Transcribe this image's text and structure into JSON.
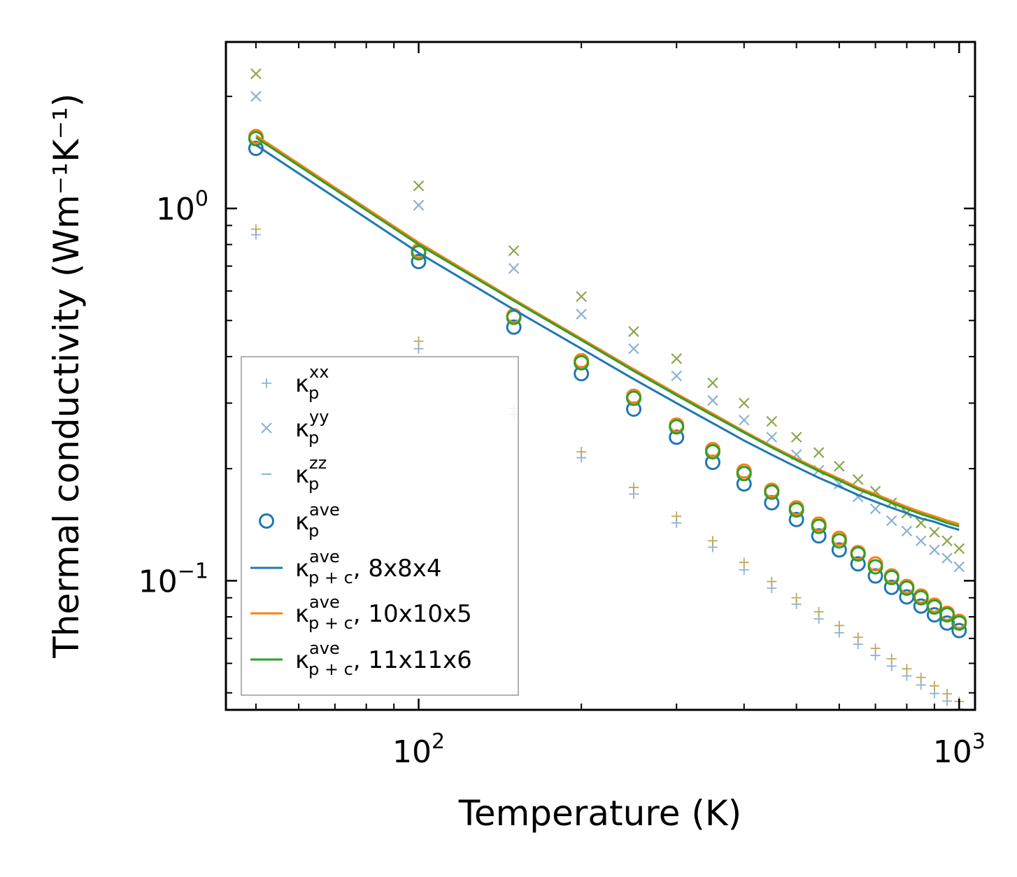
{
  "chart_data": {
    "type": "scatter",
    "xscale": "log",
    "yscale": "log",
    "xlabel": "Temperature (K)",
    "ylabel": "Thermal conductivity (Wm⁻¹K⁻¹)",
    "xlim": [
      44,
      1070
    ],
    "ylim": [
      0.045,
      2.8
    ],
    "xticks": [
      {
        "value": 100,
        "base": "10",
        "exp": "2"
      },
      {
        "value": 1000,
        "base": "10",
        "exp": "3"
      }
    ],
    "yticks": [
      {
        "value": 0.1,
        "base": "10",
        "exp": "−1"
      },
      {
        "value": 1.0,
        "base": "10",
        "exp": "0"
      }
    ],
    "colors": {
      "blue": "#1f77b4",
      "orange": "#ff7f0e",
      "green": "#2ca02c",
      "olive": "#7f9d3a",
      "light_blue": "#7faacf",
      "light_olive": "#b5a24a"
    },
    "x": [
      50,
      100,
      150,
      200,
      250,
      300,
      350,
      400,
      450,
      500,
      550,
      600,
      650,
      700,
      750,
      800,
      850,
      900,
      950,
      1000
    ],
    "series": [
      {
        "name": "kxx_8x8x4",
        "kind": "plus",
        "color": "light_blue",
        "values": [
          0.85,
          0.42,
          0.28,
          0.214,
          0.171,
          0.143,
          0.123,
          0.107,
          0.0955,
          0.0865,
          0.079,
          0.0725,
          0.0675,
          0.063,
          0.059,
          0.0555,
          0.0525,
          0.0498,
          0.0475,
          0.0452
        ]
      },
      {
        "name": "kxx_11x11x6",
        "kind": "plus",
        "color": "light_olive",
        "values": [
          0.88,
          0.44,
          0.29,
          0.222,
          0.178,
          0.149,
          0.128,
          0.112,
          0.0995,
          0.09,
          0.0825,
          0.0758,
          0.0705,
          0.0658,
          0.0617,
          0.058,
          0.055,
          0.0522,
          0.0497,
          0.0474
        ]
      },
      {
        "name": "kyy_8x8x4",
        "kind": "cross",
        "color": "light_blue",
        "values": [
          2.0,
          1.02,
          0.69,
          0.52,
          0.42,
          0.355,
          0.305,
          0.27,
          0.243,
          0.218,
          0.198,
          0.182,
          0.168,
          0.156,
          0.145,
          0.136,
          0.128,
          0.121,
          0.115,
          0.109
        ]
      },
      {
        "name": "kyy_11x11x6",
        "kind": "cross",
        "color": "olive",
        "values": [
          2.3,
          1.15,
          0.77,
          0.58,
          0.467,
          0.395,
          0.34,
          0.3,
          0.268,
          0.243,
          0.221,
          0.203,
          0.187,
          0.174,
          0.162,
          0.152,
          0.143,
          0.135,
          0.128,
          0.122
        ]
      },
      {
        "name": "kave_8x8x4",
        "kind": "circle",
        "color": "blue",
        "values": [
          1.45,
          0.72,
          0.48,
          0.36,
          0.289,
          0.243,
          0.208,
          0.182,
          0.162,
          0.146,
          0.132,
          0.121,
          0.111,
          0.103,
          0.096,
          0.0905,
          0.0855,
          0.081,
          0.077,
          0.0735
        ]
      },
      {
        "name": "kave_10x10x5",
        "kind": "circle",
        "color": "orange",
        "values": [
          1.56,
          0.77,
          0.515,
          0.39,
          0.313,
          0.262,
          0.225,
          0.197,
          0.175,
          0.157,
          0.142,
          0.13,
          0.119,
          0.111,
          0.103,
          0.0965,
          0.091,
          0.086,
          0.0818,
          0.0778
        ]
      },
      {
        "name": "kave_11x11x6",
        "kind": "circle",
        "color": "green",
        "values": [
          1.54,
          0.76,
          0.51,
          0.385,
          0.309,
          0.259,
          0.222,
          0.194,
          0.173,
          0.155,
          0.14,
          0.128,
          0.118,
          0.109,
          0.102,
          0.0955,
          0.09,
          0.085,
          0.081,
          0.077
        ]
      },
      {
        "name": "kpc_8x8x4",
        "kind": "line",
        "color": "blue",
        "values": [
          1.48,
          0.76,
          0.535,
          0.42,
          0.348,
          0.3,
          0.265,
          0.238,
          0.218,
          0.202,
          0.189,
          0.179,
          0.17,
          0.163,
          0.157,
          0.152,
          0.147,
          0.144,
          0.14,
          0.137
        ]
      },
      {
        "name": "kpc_10x10x5",
        "kind": "line",
        "color": "orange",
        "values": [
          1.57,
          0.81,
          0.57,
          0.447,
          0.37,
          0.318,
          0.281,
          0.252,
          0.23,
          0.213,
          0.199,
          0.188,
          0.178,
          0.171,
          0.164,
          0.158,
          0.153,
          0.149,
          0.145,
          0.142
        ]
      },
      {
        "name": "kpc_11x11x6",
        "kind": "line",
        "color": "green",
        "values": [
          1.55,
          0.8,
          0.565,
          0.443,
          0.366,
          0.315,
          0.278,
          0.25,
          0.228,
          0.211,
          0.197,
          0.186,
          0.176,
          0.169,
          0.162,
          0.156,
          0.151,
          0.147,
          0.143,
          0.14
        ]
      }
    ],
    "legend": {
      "location": "lower-left",
      "entries": [
        {
          "kind": "plus",
          "color": "light_blue",
          "symbol": "κ",
          "sub": "p",
          "sup": "xx",
          "suffix": ""
        },
        {
          "kind": "cross",
          "color": "light_blue",
          "symbol": "κ",
          "sub": "p",
          "sup": "yy",
          "suffix": ""
        },
        {
          "kind": "dash",
          "color": "light_blue",
          "symbol": "κ",
          "sub": "p",
          "sup": "zz",
          "suffix": ""
        },
        {
          "kind": "circle",
          "color": "blue",
          "symbol": "κ",
          "sub": "p",
          "sup": "ave",
          "suffix": ""
        },
        {
          "kind": "line",
          "color": "blue",
          "symbol": "κ",
          "sub": "p + c",
          "sup": "ave",
          "suffix": ", 8x8x4"
        },
        {
          "kind": "line",
          "color": "orange",
          "symbol": "κ",
          "sub": "p + c",
          "sup": "ave",
          "suffix": ", 10x10x5"
        },
        {
          "kind": "line",
          "color": "green",
          "symbol": "κ",
          "sub": "p + c",
          "sup": "ave",
          "suffix": ", 11x11x6"
        }
      ]
    }
  }
}
